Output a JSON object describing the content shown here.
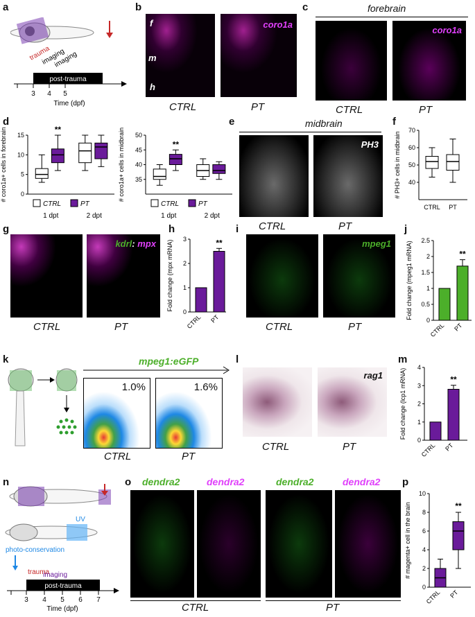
{
  "colors": {
    "purple": "#6a1b9a",
    "green": "#4caf2a",
    "magenta": "#e040fb",
    "red": "#c62828",
    "blue": "#1e88e5"
  },
  "labels": {
    "a": "a",
    "b": "b",
    "c": "c",
    "d": "d",
    "e": "e",
    "f": "f",
    "g": "g",
    "h": "h",
    "i": "i",
    "j": "j",
    "k": "k",
    "l": "l",
    "m": "m",
    "n": "n",
    "o": "o",
    "p": "p"
  },
  "conditions": {
    "ctrl": "CTRL",
    "pt": "PT"
  },
  "panel_a": {
    "trauma": "trauma",
    "imaging1": "imaging",
    "imaging2": "imaging",
    "post_trauma": "post-trauma",
    "ticks": [
      "3",
      "4",
      "5"
    ],
    "xlabel": "Time (dpf)"
  },
  "panel_b": {
    "marker": "coro1a",
    "f": "f",
    "m": "m",
    "h": "h"
  },
  "panel_c": {
    "title": "forebrain",
    "marker": "coro1a"
  },
  "panel_d": {
    "ylabel1": "# coro1a+ cells in forebrain",
    "ylabel2": "# coro1a+ cells in midbrain",
    "legend_ctrl": "CTRL",
    "legend_pt": "PT",
    "sig": "**"
  },
  "panel_e": {
    "title": "midbrain",
    "marker": "PH3"
  },
  "panel_f": {
    "ylabel": "# PH3+ cells in midbrain"
  },
  "panel_g": {
    "marker1": "kdrl",
    "sep": ":",
    "marker2": "mpx"
  },
  "panel_h": {
    "ylabel": "Fold change (mpx mRNA)",
    "sig": "**"
  },
  "panel_i": {
    "marker": "mpeg1"
  },
  "panel_j": {
    "ylabel": "Fold change (mpeg1 mRNA)",
    "sig": "**"
  },
  "panel_k": {
    "title": "mpeg1:eGFP",
    "pct_ctrl": "1.0%",
    "pct_pt": "1.6%"
  },
  "panel_l": {
    "marker": "rag1"
  },
  "panel_m": {
    "ylabel": "Fold change (lcp1 mRNA)",
    "sig": "**"
  },
  "panel_n": {
    "uv": "UV",
    "photo": "photo-conservation",
    "trauma": "trauma",
    "imaging": "imaging",
    "post_trauma": "post-trauma",
    "ticks": [
      "3",
      "4",
      "5",
      "6",
      "7"
    ],
    "xlabel": "Time (dpf)"
  },
  "panel_o": {
    "marker": "dendra2"
  },
  "panel_p": {
    "ylabel": "# magenta+ cell in the brain",
    "sig": "**"
  },
  "chart_data": [
    {
      "id": "d-forebrain",
      "type": "box",
      "categories": [
        "1 dpt",
        "2 dpt"
      ],
      "series": [
        {
          "name": "CTRL",
          "boxes": [
            {
              "min": 3,
              "q1": 4,
              "median": 5,
              "q3": 6.5,
              "max": 10
            },
            {
              "min": 6,
              "q1": 8,
              "median": 11,
              "q3": 13,
              "max": 15
            }
          ]
        },
        {
          "name": "PT",
          "boxes": [
            {
              "min": 6,
              "q1": 8,
              "median": 10,
              "q3": 11.5,
              "max": 15
            },
            {
              "min": 7,
              "q1": 9,
              "median": 12,
              "q3": 13,
              "max": 15
            }
          ]
        }
      ],
      "ylim": [
        0,
        15
      ],
      "yticks": [
        0,
        5,
        10,
        15
      ],
      "annotations": [
        "**"
      ]
    },
    {
      "id": "d-midbrain",
      "type": "box",
      "categories": [
        "1 dpt",
        "2 dpt"
      ],
      "series": [
        {
          "name": "CTRL",
          "boxes": [
            {
              "min": 33,
              "q1": 35,
              "median": 36,
              "q3": 38.5,
              "max": 40
            },
            {
              "min": 35,
              "q1": 36,
              "median": 38,
              "q3": 40,
              "max": 42
            }
          ]
        },
        {
          "name": "PT",
          "boxes": [
            {
              "min": 38,
              "q1": 40,
              "median": 42,
              "q3": 43.5,
              "max": 45
            },
            {
              "min": 35,
              "q1": 37,
              "median": 38,
              "q3": 40,
              "max": 41
            }
          ]
        }
      ],
      "ylim": [
        30,
        50
      ],
      "yticks": [
        35,
        40,
        45,
        50
      ],
      "annotations": [
        "**"
      ]
    },
    {
      "id": "f",
      "type": "box",
      "categories": [
        "CTRL",
        "PT"
      ],
      "boxes": [
        {
          "min": 43,
          "q1": 48,
          "median": 52,
          "q3": 55,
          "max": 60
        },
        {
          "min": 40,
          "q1": 47,
          "median": 52,
          "q3": 56,
          "max": 65
        }
      ],
      "ylim": [
        30,
        70
      ],
      "yticks": [
        40,
        50,
        60,
        70
      ]
    },
    {
      "id": "h",
      "type": "bar",
      "categories": [
        "CTRL",
        "PT"
      ],
      "values": [
        1,
        2.5
      ],
      "errors": [
        0,
        0.12
      ],
      "ylim": [
        0,
        3
      ],
      "yticks": [
        0,
        1,
        2,
        3
      ],
      "annotations": [
        "**"
      ]
    },
    {
      "id": "j",
      "type": "bar",
      "categories": [
        "CTRL",
        "PT"
      ],
      "values": [
        1,
        1.7
      ],
      "errors": [
        0,
        0.2
      ],
      "ylim": [
        0,
        2.5
      ],
      "yticks": [
        0.0,
        0.5,
        1.0,
        1.5,
        2.0,
        2.5
      ],
      "annotations": [
        "**"
      ]
    },
    {
      "id": "m",
      "type": "bar",
      "categories": [
        "CTRL",
        "PT"
      ],
      "values": [
        1,
        2.8
      ],
      "errors": [
        0,
        0.22
      ],
      "ylim": [
        0,
        4
      ],
      "yticks": [
        0,
        1,
        2,
        3,
        4
      ],
      "annotations": [
        "**"
      ]
    },
    {
      "id": "p",
      "type": "box",
      "categories": [
        "CTRL",
        "PT"
      ],
      "boxes": [
        {
          "min": 0,
          "q1": 0,
          "median": 1,
          "q3": 2,
          "max": 3
        },
        {
          "min": 2,
          "q1": 4,
          "median": 6,
          "q3": 7,
          "max": 8
        }
      ],
      "ylim": [
        0,
        10
      ],
      "yticks": [
        0,
        2,
        4,
        6,
        8,
        10
      ],
      "annotations": [
        "**"
      ]
    }
  ]
}
